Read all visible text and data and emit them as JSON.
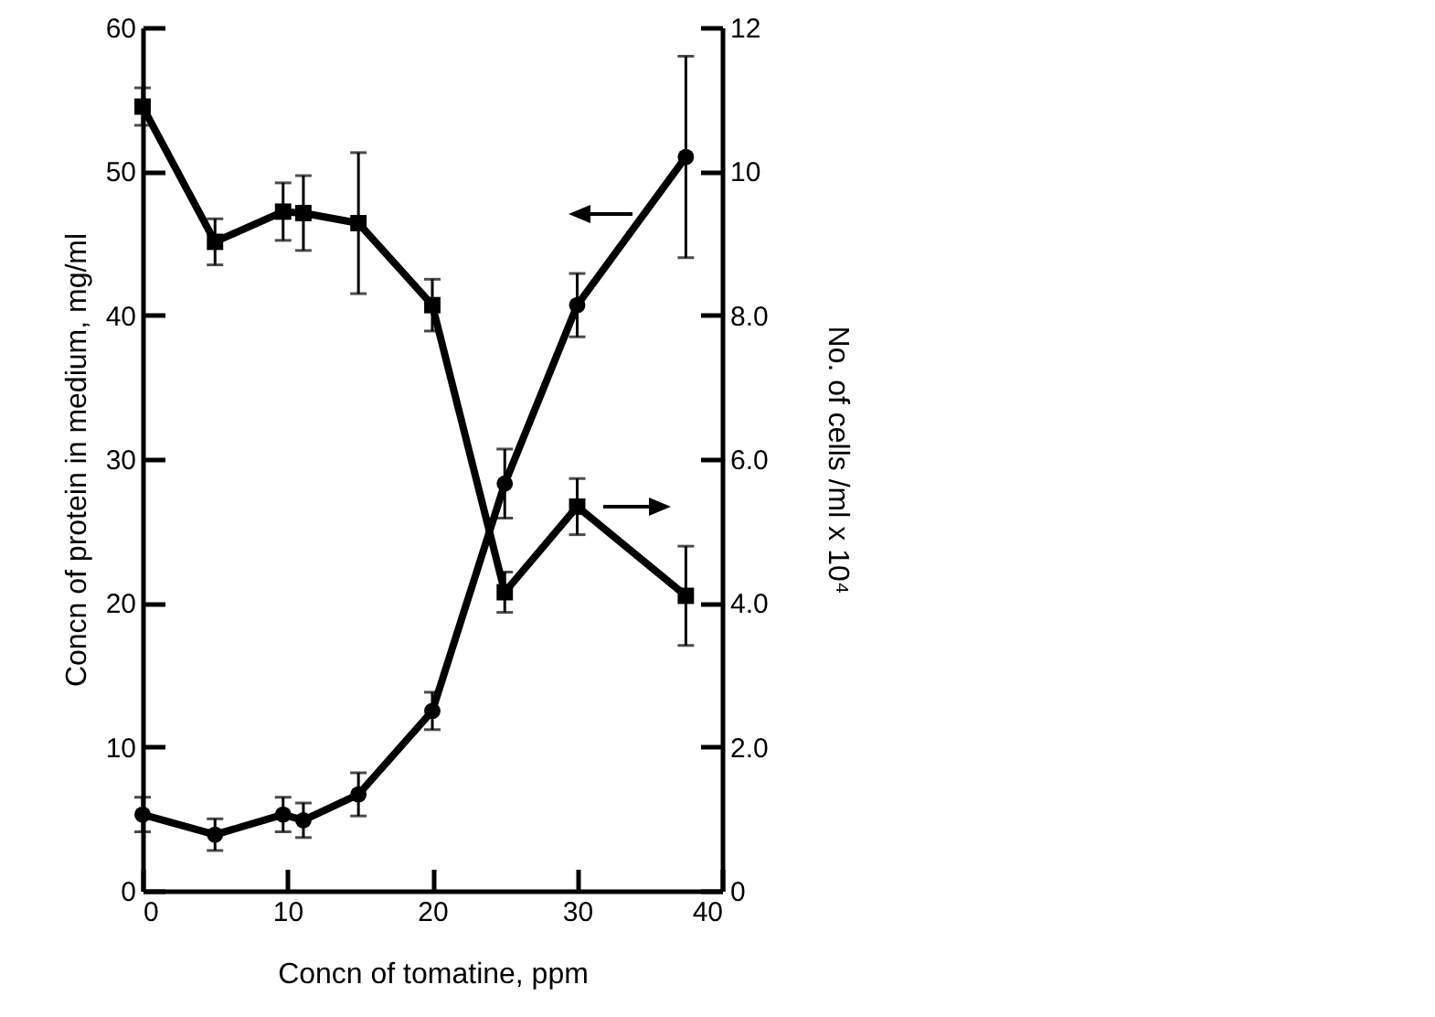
{
  "chart_data": {
    "type": "line",
    "xlabel": "Concn of tomatine, ppm",
    "ylabel": "Concn of protein in medium, mg/ml",
    "y2label": "No. of cells /ml x 10⁴",
    "x": [
      0,
      5,
      9.7,
      11.1,
      14.9,
      20,
      25,
      30,
      37.5
    ],
    "series": [
      {
        "color": "#000000",
        "marker": "circle",
        "values": [
          5.3,
          3.9,
          5.3,
          4.9,
          6.7,
          12.5,
          28.3,
          40.7,
          51.0
        ],
        "errors": [
          1.2,
          1.1,
          1.2,
          1.2,
          1.5,
          1.3,
          2.4,
          2.2,
          7.0
        ]
      },
      {
        "color": "#000000",
        "marker": "square",
        "axis": "y2",
        "values": [
          10.9,
          9.02,
          9.44,
          9.42,
          9.28,
          8.14,
          4.15,
          5.34,
          4.1
        ],
        "errors": [
          0.26,
          0.32,
          0.4,
          0.52,
          0.98,
          0.36,
          0.28,
          0.39,
          0.69
        ]
      }
    ],
    "xlim": [
      0,
      40
    ],
    "xticks": [
      0,
      10,
      20,
      30,
      40
    ],
    "ylim": [
      0,
      60
    ],
    "yticks": [
      0,
      10,
      20,
      30,
      40,
      50,
      60
    ],
    "y2lim": [
      0,
      12
    ],
    "y2ticks": [
      0,
      {
        "value": 2,
        "label": "2.0"
      },
      {
        "value": 4,
        "label": "4.0"
      },
      {
        "value": 6,
        "label": "6.0"
      },
      {
        "value": 8,
        "label": "8.0"
      },
      10,
      12
    ],
    "grid": false,
    "line_style": "solid"
  }
}
